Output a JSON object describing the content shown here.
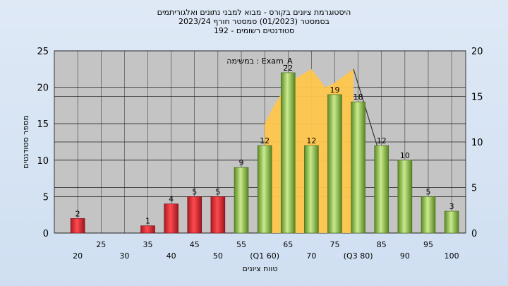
{
  "chart_data": {
    "type": "bar",
    "title_lines": [
      "היסטוגרמת ציונים בקורס - מבוא למבני נתונים ואלגוריתמים",
      "בסמסטר  (01/2023)  סמסטר חורף 2023/24",
      "סטודנטים רשומים - 192"
    ],
    "xlabel": "טווח ציונים",
    "ylabel": "מספר סטודנטים",
    "annotation": "במשימה : Exam_A",
    "x_ticks_lower": [
      "20",
      "30",
      "40",
      "50",
      "(Q1 60)",
      "70",
      "(Q3 80)",
      "90",
      "100"
    ],
    "x_ticks_upper": [
      "25",
      "35",
      "45",
      "55",
      "65",
      "75",
      "85",
      "95"
    ],
    "ylim_left": [
      0,
      25
    ],
    "yticks_left": [
      0,
      5,
      10,
      15,
      20,
      25
    ],
    "ylim_right": [
      0,
      20
    ],
    "yticks_right": [
      0,
      5,
      10,
      15,
      20
    ],
    "xlim": [
      15,
      103
    ],
    "bars": [
      {
        "x": 20,
        "value": 2,
        "color": "red"
      },
      {
        "x": 35,
        "value": 1,
        "color": "red"
      },
      {
        "x": 40,
        "value": 4,
        "color": "red"
      },
      {
        "x": 45,
        "value": 5,
        "color": "red"
      },
      {
        "x": 50,
        "value": 5,
        "color": "red"
      },
      {
        "x": 55,
        "value": 9,
        "color": "green"
      },
      {
        "x": 60,
        "value": 12,
        "color": "green"
      },
      {
        "x": 65,
        "value": 22,
        "color": "green"
      },
      {
        "x": 70,
        "value": 12,
        "color": "green"
      },
      {
        "x": 75,
        "value": 19,
        "color": "green"
      },
      {
        "x": 80,
        "value": 18,
        "color": "green"
      },
      {
        "x": 85,
        "value": 12,
        "color": "green"
      },
      {
        "x": 90,
        "value": 10,
        "color": "green"
      },
      {
        "x": 95,
        "value": 5,
        "color": "green"
      },
      {
        "x": 100,
        "value": 3,
        "color": "green"
      }
    ],
    "area_series": {
      "color": "#ffc64d",
      "points": [
        [
          60,
          12
        ],
        [
          62,
          14
        ],
        [
          65,
          16.5
        ],
        [
          70,
          18
        ],
        [
          73,
          16
        ],
        [
          75,
          16.5
        ],
        [
          79,
          18
        ]
      ]
    },
    "line_series": {
      "color": "#333333",
      "points": [
        [
          79,
          18
        ],
        [
          85,
          8
        ]
      ]
    },
    "colors": {
      "plot_background": "#c4c4c4",
      "red_bar": "#e8333a",
      "green_bar": "#9dcc5c"
    }
  }
}
